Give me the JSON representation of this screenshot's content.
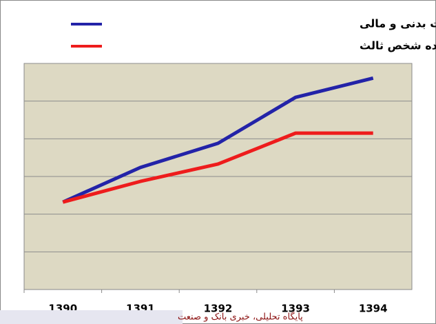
{
  "chart_data": {
    "type": "line",
    "categories": [
      "1390",
      "1391",
      "1392",
      "1393",
      "1394"
    ],
    "series": [
      {
        "name": "حق بیمه شخص ثالث متناسب با تغییرات تعهدات بدنی و مالی",
        "color": "#2323a8",
        "values": [
          2.32,
          3.24,
          3.88,
          5.1,
          5.61
        ]
      },
      {
        "name": "حق بیمه تعیین‌شده شخص ثالث",
        "color": "#ee1c1c",
        "values": [
          2.32,
          2.87,
          3.33,
          4.15,
          4.15
        ]
      }
    ],
    "ylim": [
      0,
      6
    ],
    "yticks": [
      0,
      1,
      2,
      3,
      4,
      5,
      6
    ],
    "grid": true,
    "plot_color": "#ddd9c3",
    "watermark": "پایگاه تحلیلی، خبری بانک و صنعت"
  }
}
